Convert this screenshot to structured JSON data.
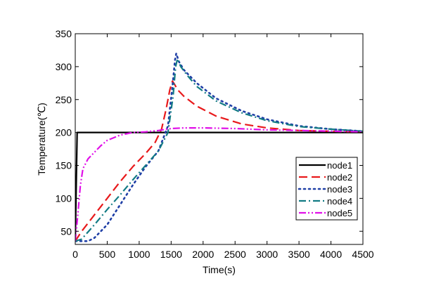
{
  "chart_data": {
    "type": "line",
    "xlabel": "Time(s)",
    "ylabel": "Temperature(℃)",
    "xlim": [
      0,
      4500
    ],
    "ylim": [
      30,
      350
    ],
    "xticks": [
      0,
      500,
      1000,
      1500,
      2000,
      2500,
      3000,
      3500,
      4000,
      4500
    ],
    "yticks": [
      50,
      100,
      150,
      200,
      250,
      300,
      350
    ],
    "grid": false,
    "legend_position": "right",
    "series": [
      {
        "name": "node1",
        "color": "#000000",
        "style": "solid",
        "x": [
          0,
          30,
          4500
        ],
        "y": [
          35,
          200,
          200
        ]
      },
      {
        "name": "node2",
        "color": "#e8191b",
        "style": "dash",
        "x": [
          0,
          100,
          300,
          500,
          700,
          900,
          1100,
          1250,
          1350,
          1420,
          1480,
          1520,
          1560,
          1600,
          1700,
          1900,
          2200,
          2600,
          3000,
          3500,
          4000,
          4500
        ],
        "y": [
          35,
          50,
          75,
          100,
          125,
          148,
          168,
          185,
          205,
          235,
          265,
          278,
          272,
          265,
          255,
          240,
          225,
          213,
          207,
          203,
          202,
          201
        ]
      },
      {
        "name": "node3",
        "color": "#1f3fa6",
        "style": "dot",
        "x": [
          0,
          200,
          300,
          500,
          700,
          900,
          1100,
          1300,
          1450,
          1520,
          1560,
          1580,
          1620,
          1700,
          1900,
          2200,
          2600,
          3000,
          3500,
          4000,
          4500
        ],
        "y": [
          35,
          35,
          40,
          60,
          90,
          120,
          148,
          172,
          210,
          270,
          310,
          320,
          308,
          295,
          275,
          252,
          233,
          220,
          210,
          205,
          202
        ]
      },
      {
        "name": "node4",
        "color": "#127b84",
        "style": "dashdot",
        "x": [
          0,
          100,
          300,
          500,
          700,
          900,
          1100,
          1300,
          1450,
          1530,
          1570,
          1600,
          1650,
          1750,
          1900,
          2200,
          2600,
          3000,
          3500,
          4000,
          4500
        ],
        "y": [
          35,
          38,
          60,
          83,
          105,
          128,
          150,
          172,
          200,
          255,
          300,
          312,
          300,
          287,
          270,
          248,
          230,
          218,
          209,
          205,
          202
        ]
      },
      {
        "name": "node5",
        "color": "#e010e8",
        "style": "dashdotdot",
        "x": [
          0,
          40,
          80,
          120,
          200,
          300,
          400,
          500,
          700,
          900,
          1100,
          1300,
          1500,
          1700,
          2000,
          2500,
          3000,
          3500,
          4000,
          4500
        ],
        "y": [
          35,
          75,
          120,
          145,
          160,
          170,
          180,
          188,
          196,
          200,
          201,
          203,
          206,
          207,
          207,
          206,
          204,
          203,
          202,
          201
        ]
      }
    ]
  }
}
